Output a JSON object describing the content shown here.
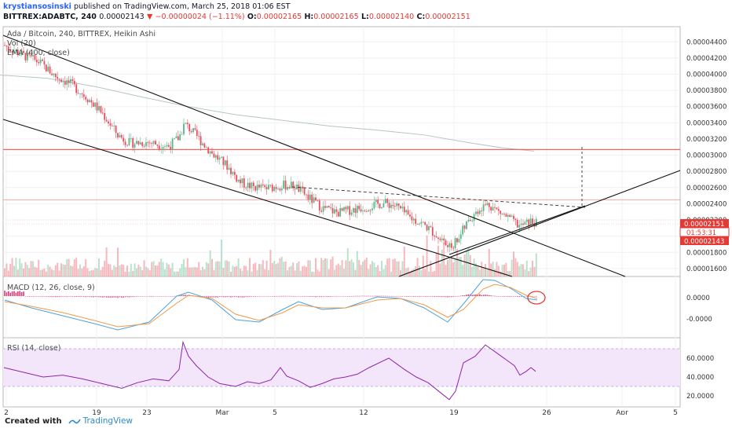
{
  "header": {
    "author": "krystiansosinski",
    "published_text": "published on TradingView.com, March 25, 2018 01:06 EST",
    "symbol": "BITTREX:ADABTC, 240",
    "last": "0.00002143",
    "arrow": "▼",
    "change": "−0.00000024 (−1.11%)",
    "ohlc": [
      {
        "label": "O:",
        "value": "0.00002165"
      },
      {
        "label": "H:",
        "value": "0.00002165"
      },
      {
        "label": "L:",
        "value": "0.00002140"
      },
      {
        "label": "C:",
        "value": "0.00002151"
      }
    ]
  },
  "chart_data": [
    {
      "type": "candlestick",
      "legend": [
        "Ada / Bitcoin, 240, BITTREX, Heikin Ashi",
        "Vol (20)",
        "EMA (400, close)"
      ],
      "yticks": [
        "0.00004400",
        "0.00004200",
        "0.00004000",
        "0.00003800",
        "0.00003600",
        "0.00003400",
        "0.00003200",
        "0.00003000",
        "0.00002800",
        "0.00002600",
        "0.00002400",
        "0.00002200",
        "0.00002000",
        "0.00001800",
        "0.00001600"
      ],
      "ylim": [
        1.56e-05,
        4.49e-05
      ],
      "xlabels": [
        "2",
        "19",
        "23",
        "Mar",
        "5",
        "12",
        "19",
        "26",
        "Apr",
        "5"
      ],
      "price_labels": [
        {
          "text": "0.00002151",
          "color": "#e53935"
        },
        {
          "text": "01:53:31",
          "color": "#e53935"
        },
        {
          "text": "0.00002143",
          "color": "#e53935"
        }
      ],
      "horizontal_levels": [
        3.07e-05,
        2.45e-05
      ],
      "ema_400": [
        [
          0,
          3.99e-05
        ],
        [
          60,
          3.95e-05
        ],
        [
          120,
          3.85e-05
        ],
        [
          180,
          3.72e-05
        ],
        [
          240,
          3.6e-05
        ],
        [
          300,
          3.5e-05
        ],
        [
          360,
          3.43e-05
        ],
        [
          420,
          3.36e-05
        ],
        [
          480,
          3.31e-05
        ],
        [
          540,
          3.25e-05
        ],
        [
          600,
          3.15e-05
        ],
        [
          640,
          3.09e-05
        ],
        [
          680,
          3.05e-05
        ]
      ],
      "price_path": [
        [
          5,
          4.36e-05
        ],
        [
          30,
          4.23e-05
        ],
        [
          50,
          4.15e-05
        ],
        [
          70,
          3.98e-05
        ],
        [
          90,
          3.88e-05
        ],
        [
          110,
          3.72e-05
        ],
        [
          130,
          3.52e-05
        ],
        [
          150,
          3.25e-05
        ],
        [
          165,
          3.15e-05
        ],
        [
          190,
          3.16e-05
        ],
        [
          215,
          3.11e-05
        ],
        [
          228,
          3.22e-05
        ],
        [
          235,
          3.39e-05
        ],
        [
          250,
          3.24e-05
        ],
        [
          270,
          3.02e-05
        ],
        [
          290,
          2.86e-05
        ],
        [
          305,
          2.67e-05
        ],
        [
          320,
          2.61e-05
        ],
        [
          340,
          2.59e-05
        ],
        [
          360,
          2.63e-05
        ],
        [
          375,
          2.62e-05
        ],
        [
          395,
          2.46e-05
        ],
        [
          410,
          2.35e-05
        ],
        [
          430,
          2.29e-05
        ],
        [
          450,
          2.33e-05
        ],
        [
          470,
          2.37e-05
        ],
        [
          490,
          2.41e-05
        ],
        [
          505,
          2.37e-05
        ],
        [
          520,
          2.24e-05
        ],
        [
          540,
          2.14e-05
        ],
        [
          560,
          1.98e-05
        ],
        [
          572,
          1.85e-05
        ],
        [
          580,
          1.93e-05
        ],
        [
          595,
          2.16e-05
        ],
        [
          610,
          2.34e-05
        ],
        [
          622,
          2.4e-05
        ],
        [
          632,
          2.32e-05
        ],
        [
          648,
          2.22e-05
        ],
        [
          662,
          2.12e-05
        ],
        [
          675,
          2.18e-05
        ],
        [
          685,
          2.15e-05
        ]
      ],
      "grid": true
    },
    {
      "type": "line",
      "legend": "MACD (12, 26, close, 9)",
      "yticks": [
        "0.0000",
        "-0.0000"
      ],
      "grid": true
    },
    {
      "type": "line",
      "legend": "RSI (14, close)",
      "yticks": [
        "60.0000",
        "40.0000",
        "20.0000"
      ],
      "ylim": [
        10,
        80
      ],
      "band": [
        30,
        70
      ],
      "values": [
        [
          5,
          50
        ],
        [
          30,
          45
        ],
        [
          55,
          40
        ],
        [
          80,
          42
        ],
        [
          105,
          38
        ],
        [
          130,
          33
        ],
        [
          155,
          28
        ],
        [
          175,
          34
        ],
        [
          195,
          38
        ],
        [
          215,
          36
        ],
        [
          228,
          48
        ],
        [
          233,
          77
        ],
        [
          240,
          62
        ],
        [
          250,
          52
        ],
        [
          265,
          40
        ],
        [
          280,
          33
        ],
        [
          300,
          30
        ],
        [
          315,
          35
        ],
        [
          330,
          33
        ],
        [
          345,
          37
        ],
        [
          357,
          50
        ],
        [
          365,
          41
        ],
        [
          380,
          36
        ],
        [
          395,
          29
        ],
        [
          410,
          33
        ],
        [
          425,
          38
        ],
        [
          440,
          40
        ],
        [
          455,
          43
        ],
        [
          470,
          50
        ],
        [
          485,
          56
        ],
        [
          495,
          60
        ],
        [
          505,
          54
        ],
        [
          515,
          48
        ],
        [
          530,
          40
        ],
        [
          545,
          34
        ],
        [
          560,
          24
        ],
        [
          572,
          16
        ],
        [
          580,
          25
        ],
        [
          590,
          55
        ],
        [
          605,
          62
        ],
        [
          618,
          74
        ],
        [
          625,
          70
        ],
        [
          635,
          64
        ],
        [
          645,
          58
        ],
        [
          655,
          52
        ],
        [
          662,
          42
        ],
        [
          670,
          46
        ],
        [
          676,
          50
        ],
        [
          682,
          46
        ]
      ],
      "grid": true
    }
  ],
  "footer": {
    "created": "Created with",
    "brand": "TradingView"
  }
}
